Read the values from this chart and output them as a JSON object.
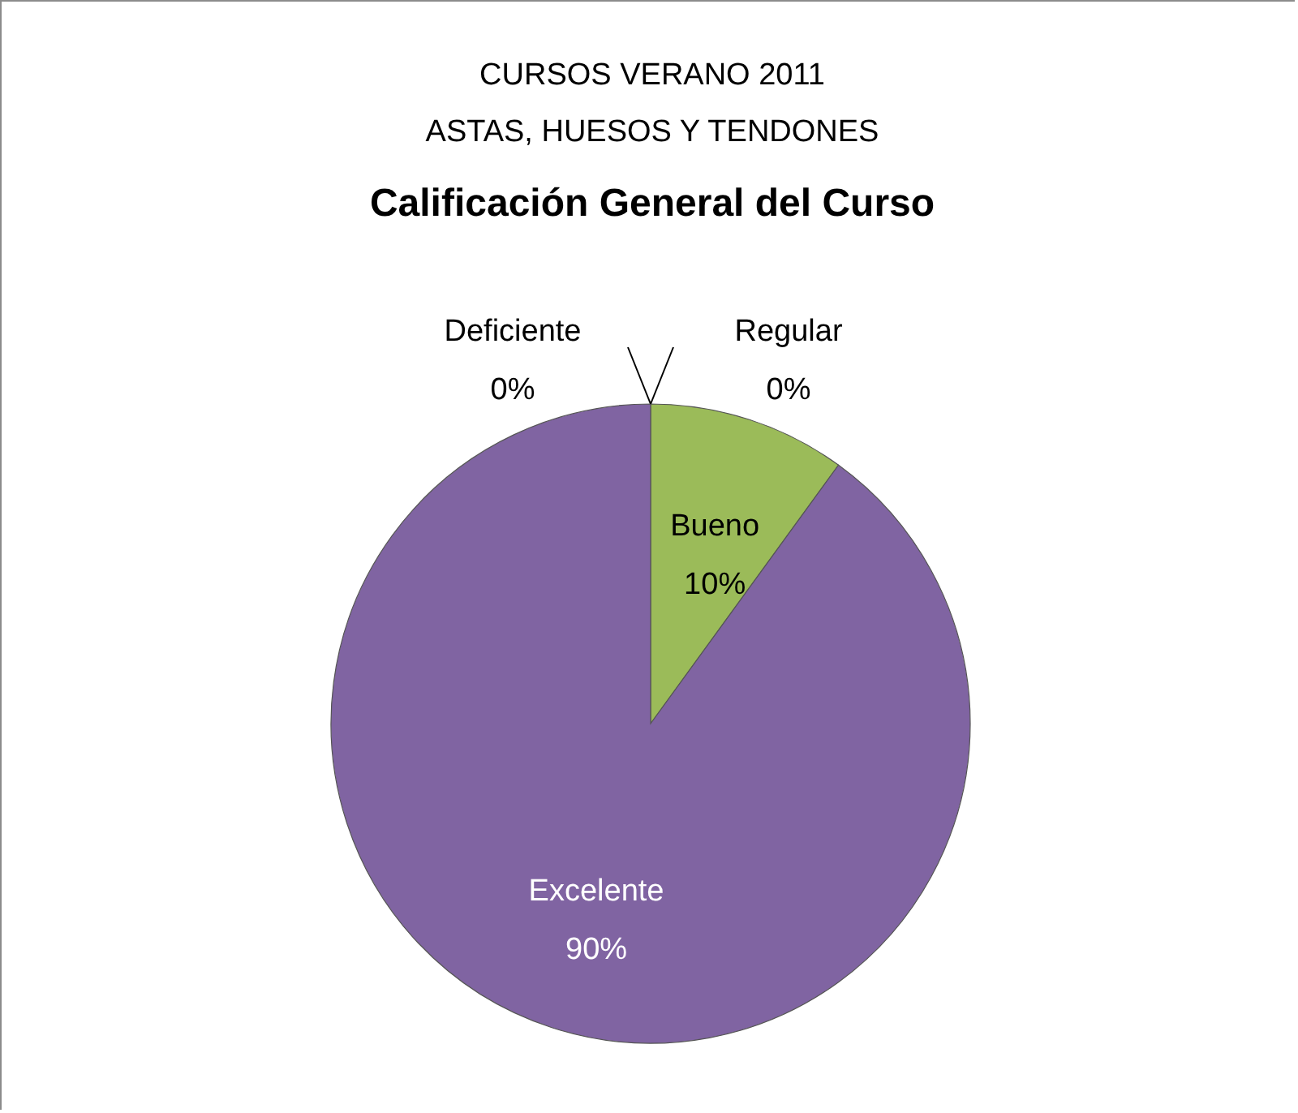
{
  "chart_data": {
    "type": "pie",
    "subtitle": "CURSOS VERANO 2011\nASTAS, HUESOS Y TENDONES",
    "title": "Calificación General del Curso",
    "categories": [
      "Deficiente",
      "Regular",
      "Bueno",
      "Excelente"
    ],
    "values": [
      0,
      0,
      10,
      90
    ],
    "value_labels": [
      "0%",
      "0%",
      "10%",
      "90%"
    ],
    "colors": [
      "#4f81bd",
      "#c0504d",
      "#9bbb59",
      "#8064a2"
    ]
  }
}
